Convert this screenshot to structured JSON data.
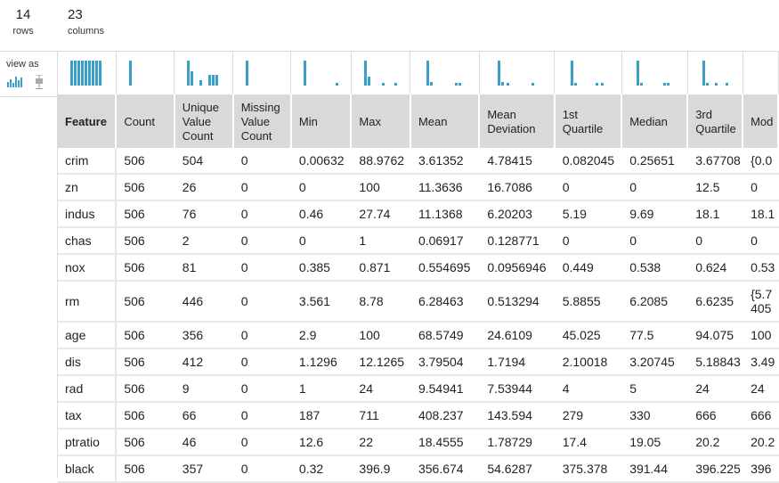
{
  "summary": {
    "rows_num": "14",
    "rows_label": "rows",
    "cols_num": "23",
    "cols_label": "columns"
  },
  "view_as": {
    "label": "view as",
    "histogram_icon": "histogram-icon",
    "boxplot_icon": "boxplot-icon"
  },
  "columns": [
    "Feature",
    "Count",
    "Unique Value Count",
    "Missing Value Count",
    "Min",
    "Max",
    "Mean",
    "Mean Deviation",
    "1st Quartile",
    "Median",
    "3rd Quartile",
    "Mod"
  ],
  "rows": [
    [
      "crim",
      "506",
      "504",
      "0",
      "0.00632",
      "88.9762",
      "3.61352",
      "4.78415",
      "0.082045",
      "0.25651",
      "3.67708",
      "{0.0"
    ],
    [
      "zn",
      "506",
      "26",
      "0",
      "0",
      "100",
      "11.3636",
      "16.7086",
      "0",
      "0",
      "12.5",
      "0"
    ],
    [
      "indus",
      "506",
      "76",
      "0",
      "0.46",
      "27.74",
      "11.1368",
      "6.20203",
      "5.19",
      "9.69",
      "18.1",
      "18.1"
    ],
    [
      "chas",
      "506",
      "2",
      "0",
      "0",
      "1",
      "0.06917",
      "0.128771",
      "0",
      "0",
      "0",
      "0"
    ],
    [
      "nox",
      "506",
      "81",
      "0",
      "0.385",
      "0.871",
      "0.554695",
      "0.0956946",
      "0.449",
      "0.538",
      "0.624",
      "0.53"
    ],
    [
      "rm",
      "506",
      "446",
      "0",
      "3.561",
      "8.78",
      "6.28463",
      "0.513294",
      "5.8855",
      "6.2085",
      "6.6235",
      "{5.7\n405"
    ],
    [
      "age",
      "506",
      "356",
      "0",
      "2.9",
      "100",
      "68.5749",
      "24.6109",
      "45.025",
      "77.5",
      "94.075",
      "100"
    ],
    [
      "dis",
      "506",
      "412",
      "0",
      "1.1296",
      "12.1265",
      "3.79504",
      "1.7194",
      "2.10018",
      "3.20745",
      "5.18843",
      "3.49"
    ],
    [
      "rad",
      "506",
      "9",
      "0",
      "1",
      "24",
      "9.54941",
      "7.53944",
      "4",
      "5",
      "24",
      "24"
    ],
    [
      "tax",
      "506",
      "66",
      "0",
      "187",
      "711",
      "408.237",
      "143.594",
      "279",
      "330",
      "666",
      "666"
    ],
    [
      "ptratio",
      "506",
      "46",
      "0",
      "12.6",
      "22",
      "18.4555",
      "1.78729",
      "17.4",
      "19.05",
      "20.2",
      "20.2"
    ],
    [
      "black",
      "506",
      "357",
      "0",
      "0.32",
      "396.9",
      "356.674",
      "54.6287",
      "375.378",
      "391.44",
      "396.225",
      "396"
    ]
  ],
  "colors": {
    "header_bg": "#d9d9d9",
    "bar_color": "#3aa0c9",
    "grid": "#e8e8e8"
  }
}
